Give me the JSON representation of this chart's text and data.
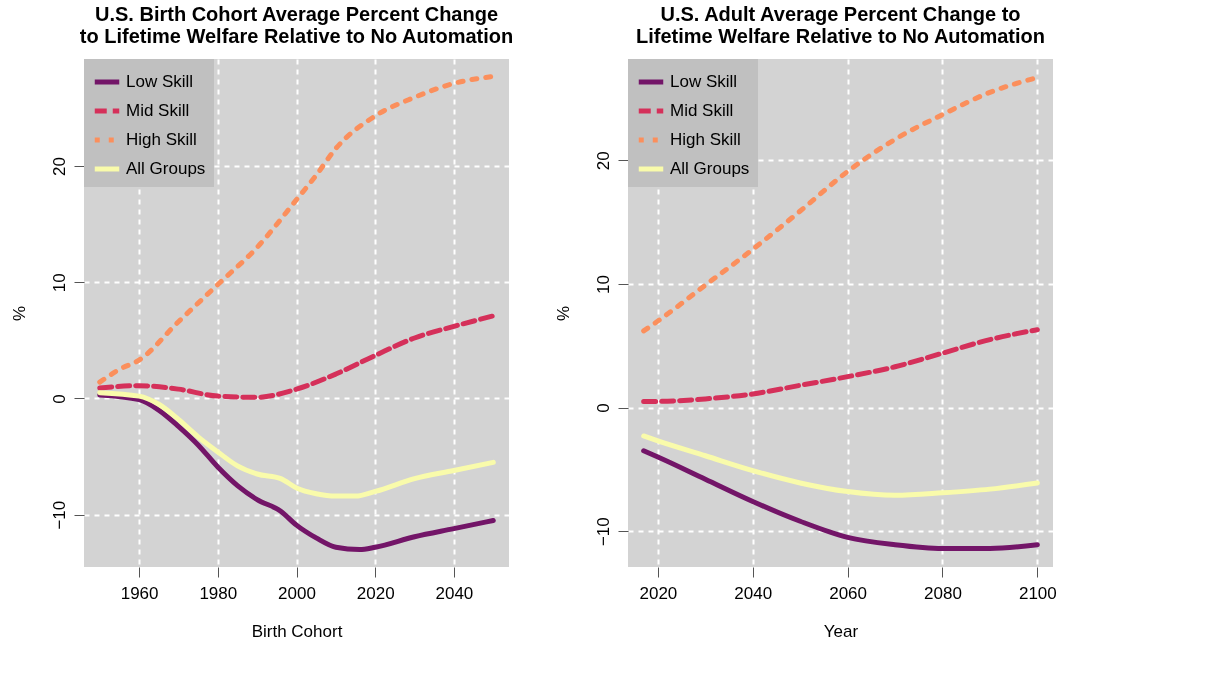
{
  "chart_data": [
    {
      "type": "line",
      "title": "U.S. Birth Cohort Average Percent Change to Lifetime Welfare Relative to No Automation",
      "xlabel": "Birth Cohort",
      "ylabel": "%",
      "xlim": [
        1946,
        2054
      ],
      "xticks": [
        1960,
        1980,
        2000,
        2020,
        2040
      ],
      "ylim": [
        -14.5,
        29.2
      ],
      "yticks": [
        -10,
        0,
        10,
        20
      ],
      "grid": true,
      "legend": "top left",
      "series": [
        {
          "name": "Low Skill",
          "color": "#731568",
          "line_style": "solid",
          "x": [
            1950,
            1960,
            1965,
            1970,
            1975,
            1980,
            1985,
            1990,
            1996,
            2000,
            2005,
            2010,
            2016,
            2020,
            2030,
            2040,
            2050
          ],
          "values": [
            0.3,
            -0.1,
            -1,
            -2.4,
            -4,
            -5.9,
            -7.5,
            -8.7,
            -9.7,
            -10.9,
            -12,
            -12.8,
            -13,
            -12.8,
            -11.9,
            -11.2,
            -10.5
          ]
        },
        {
          "name": "Mid Skill",
          "color": "#d5305a",
          "line_style": "dashed",
          "x": [
            1950,
            1960,
            1970,
            1980,
            1990,
            2000,
            2010,
            2020,
            2030,
            2040,
            2050
          ],
          "values": [
            0.9,
            1.1,
            0.8,
            0.2,
            0.1,
            0.8,
            2.1,
            3.7,
            5.2,
            6.2,
            7.1
          ]
        },
        {
          "name": "High Skill",
          "color": "#fb8f5c",
          "line_style": "dotted",
          "x": [
            1950,
            1955,
            1960,
            1970,
            1980,
            1990,
            2000,
            2005,
            2010,
            2020,
            2030,
            2040,
            2050
          ],
          "values": [
            1.4,
            2.5,
            3.3,
            6.6,
            9.8,
            13,
            17.1,
            19.2,
            21.5,
            24.3,
            25.9,
            27.1,
            27.7
          ]
        },
        {
          "name": "All Groups",
          "color": "#f9fbab",
          "line_style": "solid",
          "x": [
            1950,
            1960,
            1965,
            1970,
            1975,
            1980,
            1985,
            1990,
            1996,
            2000,
            2005,
            2010,
            2015,
            2020,
            2030,
            2040,
            2050
          ],
          "values": [
            0.5,
            0.2,
            -0.5,
            -1.8,
            -3.3,
            -4.6,
            -5.8,
            -6.5,
            -6.9,
            -7.7,
            -8.2,
            -8.4,
            -8.4,
            -8,
            -6.9,
            -6.2,
            -5.5
          ]
        }
      ]
    },
    {
      "type": "line",
      "title": "U.S. Adult Average Percent Change to Lifetime Welfare Relative to No Automation",
      "xlabel": "Year",
      "ylabel": "%",
      "xlim": [
        2013.7,
        2103.3
      ],
      "xticks": [
        2020,
        2040,
        2060,
        2080,
        2100
      ],
      "ylim": [
        -12.9,
        28.2
      ],
      "yticks": [
        -10,
        0,
        10,
        20
      ],
      "grid": true,
      "legend": "top left",
      "series": [
        {
          "name": "Low Skill",
          "color": "#731568",
          "line_style": "solid",
          "x": [
            2017,
            2020,
            2030,
            2040,
            2050,
            2060,
            2070,
            2080,
            2090,
            2100
          ],
          "values": [
            -3.5,
            -4,
            -5.8,
            -7.6,
            -9.2,
            -10.5,
            -11.1,
            -11.4,
            -11.4,
            -11.1
          ]
        },
        {
          "name": "Mid Skill",
          "color": "#d5305a",
          "line_style": "dashed",
          "x": [
            2017,
            2020,
            2030,
            2040,
            2050,
            2060,
            2070,
            2080,
            2090,
            2100
          ],
          "values": [
            0.5,
            0.5,
            0.7,
            1.1,
            1.8,
            2.5,
            3.3,
            4.4,
            5.5,
            6.3
          ]
        },
        {
          "name": "High Skill",
          "color": "#fb8f5c",
          "line_style": "dotted",
          "x": [
            2017,
            2020,
            2030,
            2040,
            2050,
            2060,
            2070,
            2080,
            2090,
            2100
          ],
          "values": [
            6.2,
            7,
            9.9,
            12.8,
            15.9,
            19.1,
            21.7,
            23.7,
            25.5,
            26.7
          ]
        },
        {
          "name": "All Groups",
          "color": "#f9fbab",
          "line_style": "solid",
          "x": [
            2017,
            2020,
            2030,
            2040,
            2050,
            2060,
            2070,
            2080,
            2090,
            2100
          ],
          "values": [
            -2.3,
            -2.7,
            -3.9,
            -5.1,
            -6.1,
            -6.8,
            -7.1,
            -6.9,
            -6.6,
            -6.1
          ]
        }
      ]
    }
  ]
}
